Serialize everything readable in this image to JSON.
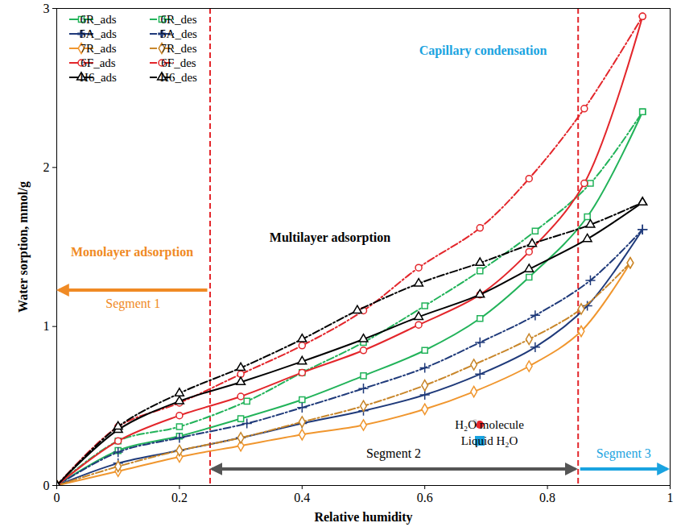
{
  "chart_data": {
    "type": "line",
    "x_label": "Relative humidity",
    "y_label": "Water sorption, mmol/g",
    "xlim": [
      0,
      1
    ],
    "xticks": [
      0,
      0.2,
      0.4,
      0.6,
      0.8,
      1
    ],
    "ylim": [
      0,
      3
    ],
    "yticks": [
      0,
      1,
      2,
      3
    ],
    "legend": "top-left",
    "series": [
      {
        "name": "6R_ads",
        "color": "#22b35a",
        "marker": "square",
        "line_style": "solid",
        "x": [
          0,
          0.1,
          0.2,
          0.3,
          0.4,
          0.5,
          0.6,
          0.69,
          0.77,
          0.865,
          0.955
        ],
        "values": [
          0,
          0.22,
          0.31,
          0.42,
          0.54,
          0.69,
          0.85,
          1.05,
          1.31,
          1.69,
          2.35
        ]
      },
      {
        "name": "6R_des",
        "color": "#22b35a",
        "marker": "square",
        "line_style": "dashdot",
        "x": [
          0,
          0.1,
          0.2,
          0.31,
          0.4,
          0.5,
          0.6,
          0.69,
          0.78,
          0.87,
          0.955
        ],
        "values": [
          0,
          0.28,
          0.37,
          0.53,
          0.71,
          0.9,
          1.13,
          1.35,
          1.6,
          1.9,
          2.35
        ]
      },
      {
        "name": "5A_ads",
        "color": "#1f3a7a",
        "marker": "plus",
        "line_style": "solid",
        "x": [
          0,
          0.1,
          0.2,
          0.3,
          0.4,
          0.5,
          0.6,
          0.69,
          0.78,
          0.865,
          0.955
        ],
        "values": [
          0,
          0.14,
          0.22,
          0.3,
          0.39,
          0.47,
          0.57,
          0.7,
          0.87,
          1.13,
          1.61
        ]
      },
      {
        "name": "5A_des",
        "color": "#1f3a7a",
        "marker": "plus",
        "line_style": "dashdot",
        "x": [
          0,
          0.1,
          0.2,
          0.31,
          0.4,
          0.5,
          0.6,
          0.69,
          0.78,
          0.87,
          0.955
        ],
        "values": [
          0,
          0.21,
          0.3,
          0.39,
          0.49,
          0.61,
          0.74,
          0.9,
          1.07,
          1.29,
          1.61
        ]
      },
      {
        "name": "7R_ads",
        "color": "#f0962e",
        "marker": "diamond",
        "line_style": "solid",
        "x": [
          0,
          0.1,
          0.2,
          0.3,
          0.4,
          0.5,
          0.6,
          0.68,
          0.77,
          0.855,
          0.935
        ],
        "values": [
          0,
          0.09,
          0.18,
          0.25,
          0.32,
          0.38,
          0.48,
          0.59,
          0.75,
          0.97,
          1.4
        ]
      },
      {
        "name": "7R_des",
        "color": "#c8862a",
        "marker": "diamond",
        "line_style": "dashdot",
        "x": [
          0,
          0.1,
          0.2,
          0.3,
          0.4,
          0.5,
          0.6,
          0.68,
          0.77,
          0.855,
          0.935
        ],
        "values": [
          0,
          0.12,
          0.22,
          0.3,
          0.4,
          0.5,
          0.63,
          0.76,
          0.92,
          1.11,
          1.4
        ]
      },
      {
        "name": "6F_ads",
        "color": "#e3262b",
        "marker": "circle",
        "line_style": "solid",
        "x": [
          0,
          0.1,
          0.2,
          0.3,
          0.4,
          0.5,
          0.59,
          0.69,
          0.77,
          0.86,
          0.955
        ],
        "values": [
          0,
          0.28,
          0.44,
          0.56,
          0.71,
          0.85,
          1.01,
          1.2,
          1.47,
          1.9,
          2.95
        ]
      },
      {
        "name": "6F_des",
        "color": "#e3262b",
        "marker": "circle",
        "line_style": "dashdot",
        "x": [
          0,
          0.1,
          0.2,
          0.3,
          0.4,
          0.5,
          0.59,
          0.69,
          0.77,
          0.86,
          0.955
        ],
        "values": [
          0,
          0.37,
          0.52,
          0.7,
          0.88,
          1.1,
          1.37,
          1.62,
          1.93,
          2.37,
          2.95
        ]
      },
      {
        "name": "H6_ads",
        "color": "#000000",
        "marker": "triangle",
        "line_style": "solid",
        "x": [
          0,
          0.1,
          0.2,
          0.3,
          0.4,
          0.5,
          0.59,
          0.69,
          0.77,
          0.865,
          0.955
        ],
        "values": [
          0,
          0.35,
          0.53,
          0.65,
          0.78,
          0.92,
          1.06,
          1.2,
          1.36,
          1.55,
          1.78
        ]
      },
      {
        "name": "H6_des",
        "color": "#000000",
        "marker": "triangle",
        "line_style": "dashdot",
        "x": [
          0,
          0.1,
          0.2,
          0.3,
          0.4,
          0.49,
          0.59,
          0.69,
          0.775,
          0.87,
          0.955
        ],
        "values": [
          0,
          0.37,
          0.58,
          0.74,
          0.92,
          1.1,
          1.27,
          1.4,
          1.52,
          1.64,
          1.78
        ]
      }
    ],
    "segments": [
      {
        "label": "Segment 1",
        "from": 0,
        "to": 0.25,
        "color": "#f08a24"
      },
      {
        "label": "Segment 2",
        "from": 0.25,
        "to": 0.85,
        "color": "#555555"
      },
      {
        "label": "Segment 3",
        "from": 0.85,
        "to": 1,
        "color": "#1aa3e0"
      }
    ],
    "boundary_color": "#e3262b",
    "annotations": [
      {
        "text": "Monolayer adsorption",
        "color": "#f08a24"
      },
      {
        "text": "Multilayer adsorption",
        "color": "#000000"
      },
      {
        "text": "Capillary condensation",
        "color": "#1aa3e0"
      }
    ],
    "symbol_key": [
      {
        "text": "H₂O molecule",
        "color": "#e3262b"
      },
      {
        "text": "Liquid H₂O",
        "color": "#1aa3e0"
      }
    ]
  }
}
